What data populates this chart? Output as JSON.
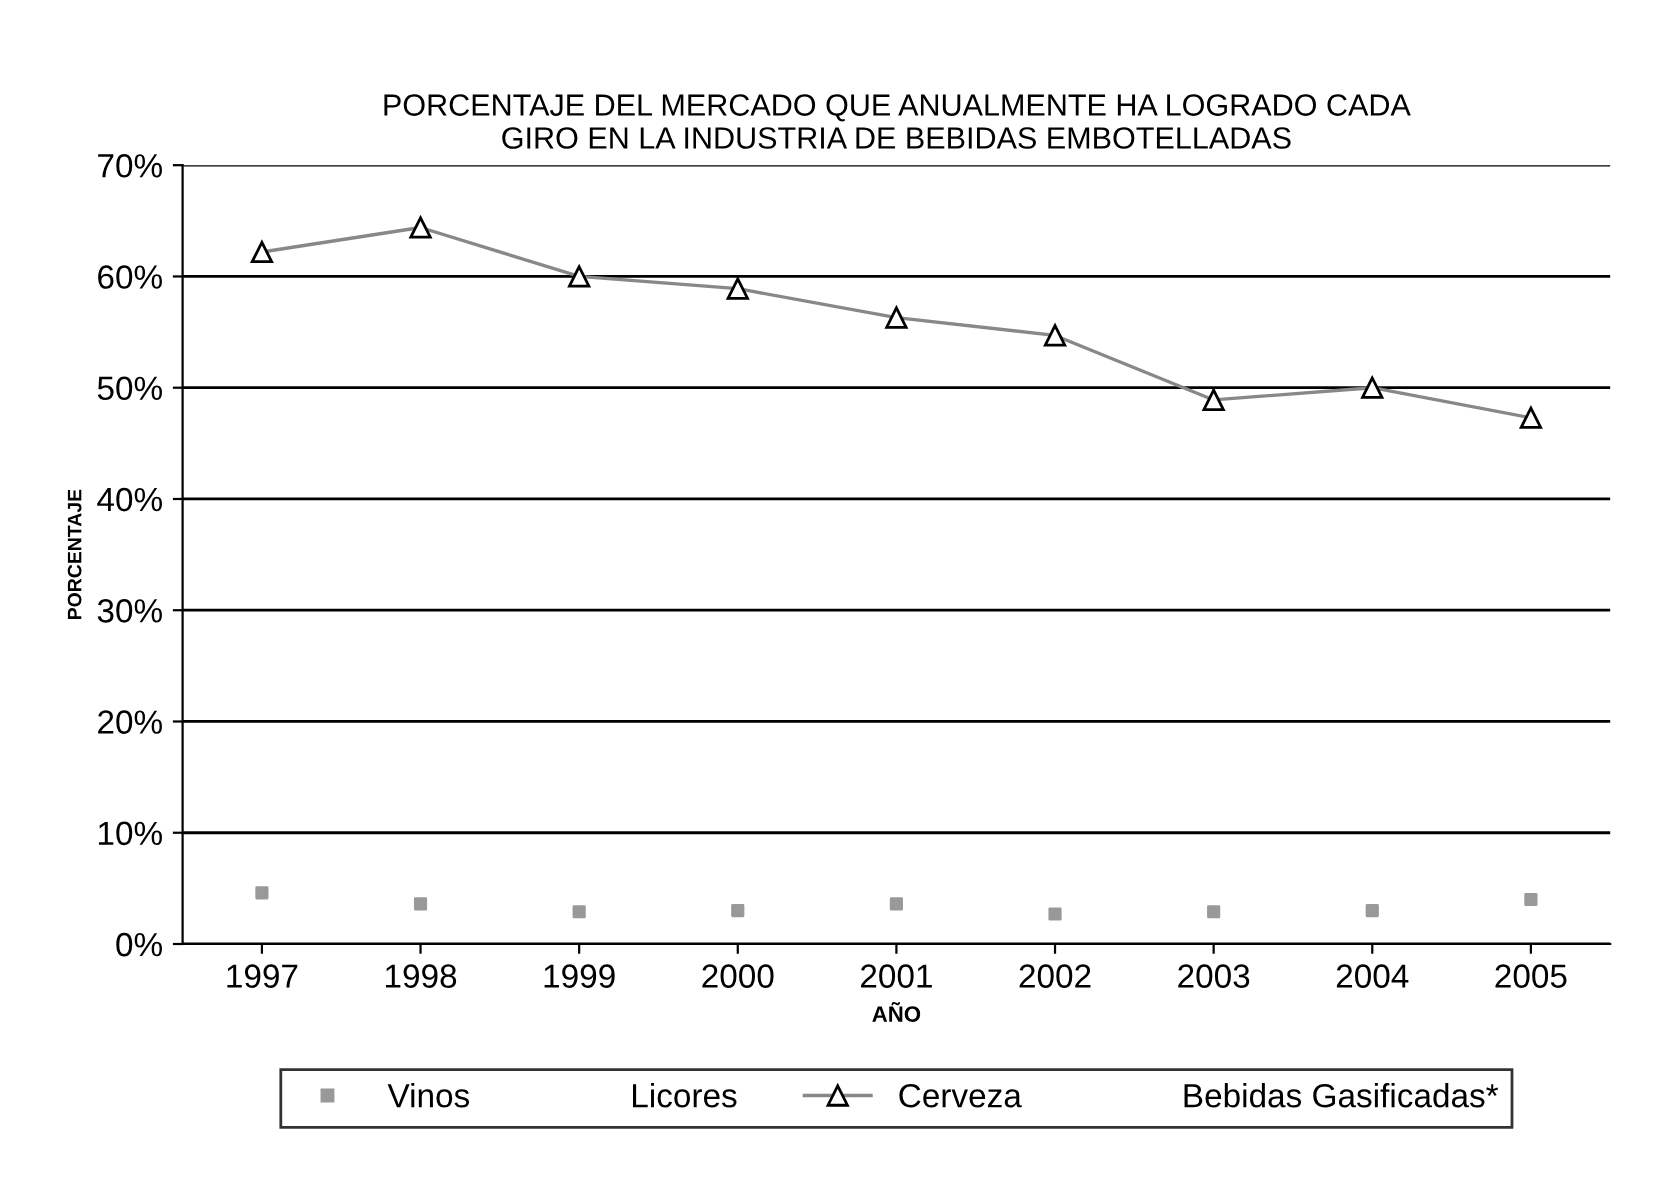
{
  "chart_data": {
    "type": "line",
    "title": "PORCENTAJE DEL MERCADO QUE ANUALMENTE HA LOGRADO CADA\nGIRO EN LA INDUSTRIA DE BEBIDAS EMBOTELLADAS",
    "xlabel": "AÑO",
    "ylabel": "PORCENTAJE",
    "categories": [
      "1997",
      "1998",
      "1999",
      "2000",
      "2001",
      "2002",
      "2003",
      "2004",
      "2005"
    ],
    "series": [
      {
        "name": "Vinos",
        "color": "#999999",
        "type": "scatter",
        "marker": "square",
        "values": [
          4.6,
          3.6,
          2.9,
          3.0,
          3.6,
          2.7,
          2.9,
          3.0,
          4.0
        ]
      },
      {
        "name": "Licores",
        "marker": "none",
        "values": [
          null,
          null,
          null,
          null,
          null,
          null,
          null,
          null,
          null
        ]
      },
      {
        "name": "Cerveza",
        "color": "#888888",
        "marker": "triangle",
        "values": [
          62.2,
          64.4,
          60.0,
          58.9,
          56.3,
          54.7,
          48.9,
          50.0,
          47.3
        ]
      },
      {
        "name": "Bebidas Gasificadas*",
        "marker": "none",
        "values": [
          null,
          null,
          null,
          null,
          null,
          null,
          null,
          null,
          null
        ]
      }
    ],
    "ylim": [
      0,
      70
    ],
    "yticks": [
      {
        "value": 0,
        "label": "0%"
      },
      {
        "value": 10,
        "label": "10%"
      },
      {
        "value": 20,
        "label": "20%"
      },
      {
        "value": 30,
        "label": "30%"
      },
      {
        "value": 40,
        "label": "40%"
      },
      {
        "value": 50,
        "label": "50%"
      },
      {
        "value": 60,
        "label": "60%"
      },
      {
        "value": 70,
        "label": "70%"
      }
    ],
    "grid": "y",
    "legend": "bottom"
  }
}
